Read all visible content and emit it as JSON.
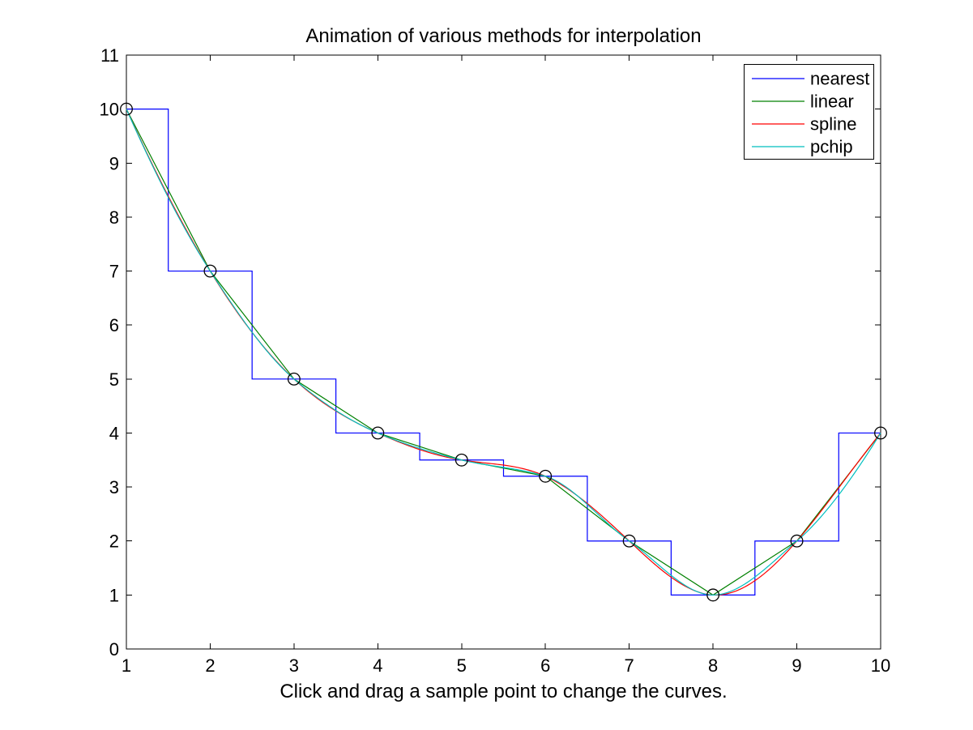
{
  "chart_data": {
    "type": "line",
    "title": "Animation of various methods for interpolation",
    "xlabel": "Click and drag a sample point to change the curves.",
    "ylabel": "",
    "xlim": [
      1,
      10
    ],
    "ylim": [
      0,
      11
    ],
    "xticks": [
      1,
      2,
      3,
      4,
      5,
      6,
      7,
      8,
      9,
      10
    ],
    "yticks": [
      0,
      1,
      2,
      3,
      4,
      5,
      6,
      7,
      8,
      9,
      10,
      11
    ],
    "grid": false,
    "legend_position": "northeast",
    "background_color": "#ffffff",
    "axis_color": "#000000",
    "sample_points": {
      "marker": "circle",
      "marker_color": "#000000",
      "x": [
        1,
        2,
        3,
        4,
        5,
        6,
        7,
        8,
        9,
        10
      ],
      "y": [
        10,
        7,
        5,
        4,
        3.5,
        3.2,
        2,
        1,
        2,
        4
      ]
    },
    "series": [
      {
        "name": "nearest",
        "method": "nearest",
        "color": "#0000ff"
      },
      {
        "name": "linear",
        "method": "linear",
        "color": "#008000"
      },
      {
        "name": "spline",
        "method": "spline",
        "color": "#ff0000"
      },
      {
        "name": "pchip",
        "method": "pchip",
        "color": "#00bfbf"
      }
    ]
  }
}
